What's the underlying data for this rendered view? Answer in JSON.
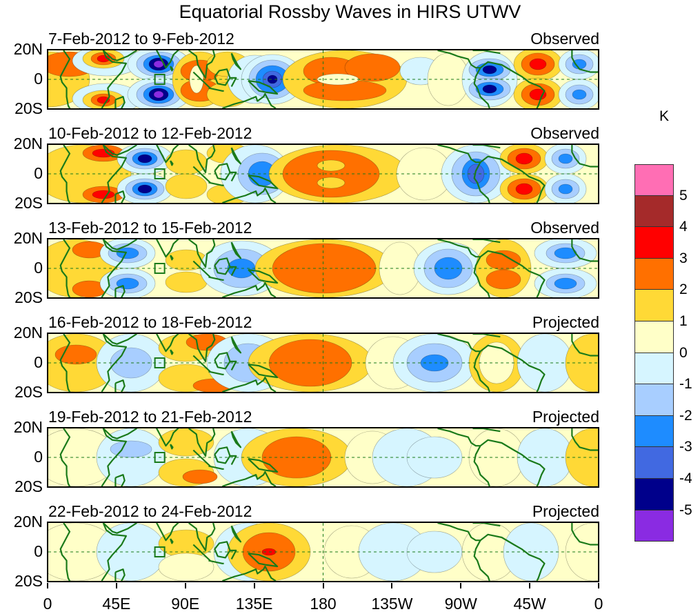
{
  "title": "Equatorial Rossby Waves in HIRS UTWV",
  "panels": [
    {
      "date": "7-Feb-2012 to 9-Feb-2012",
      "status": "Observed"
    },
    {
      "date": "10-Feb-2012 to 12-Feb-2012",
      "status": "Observed"
    },
    {
      "date": "13-Feb-2012 to 15-Feb-2012",
      "status": "Observed"
    },
    {
      "date": "16-Feb-2012 to 18-Feb-2012",
      "status": "Projected"
    },
    {
      "date": "19-Feb-2012 to 21-Feb-2012",
      "status": "Projected"
    },
    {
      "date": "22-Feb-2012 to 24-Feb-2012",
      "status": "Projected"
    }
  ],
  "lat_labels": [
    "20N",
    "0",
    "20S"
  ],
  "lon_labels": [
    "0",
    "45E",
    "90E",
    "135E",
    "180",
    "135W",
    "90W",
    "45W",
    "0"
  ],
  "colorbar": {
    "unit": "K",
    "labels": [
      "5",
      "4",
      "3",
      "2",
      "1",
      "0",
      "-1",
      "-2",
      "-3",
      "-4",
      "-5"
    ],
    "colors": [
      "#ff6eb4",
      "#a52a2a",
      "#ff0000",
      "#ff7000",
      "#ffd936",
      "#ffffc8",
      "#d6f5ff",
      "#a8ceff",
      "#1e8cff",
      "#4169e1",
      "#00008b",
      "#8a2be2"
    ]
  },
  "colors": {
    "coast": "#1a7a1a",
    "equator": "#1a7a1a"
  }
}
